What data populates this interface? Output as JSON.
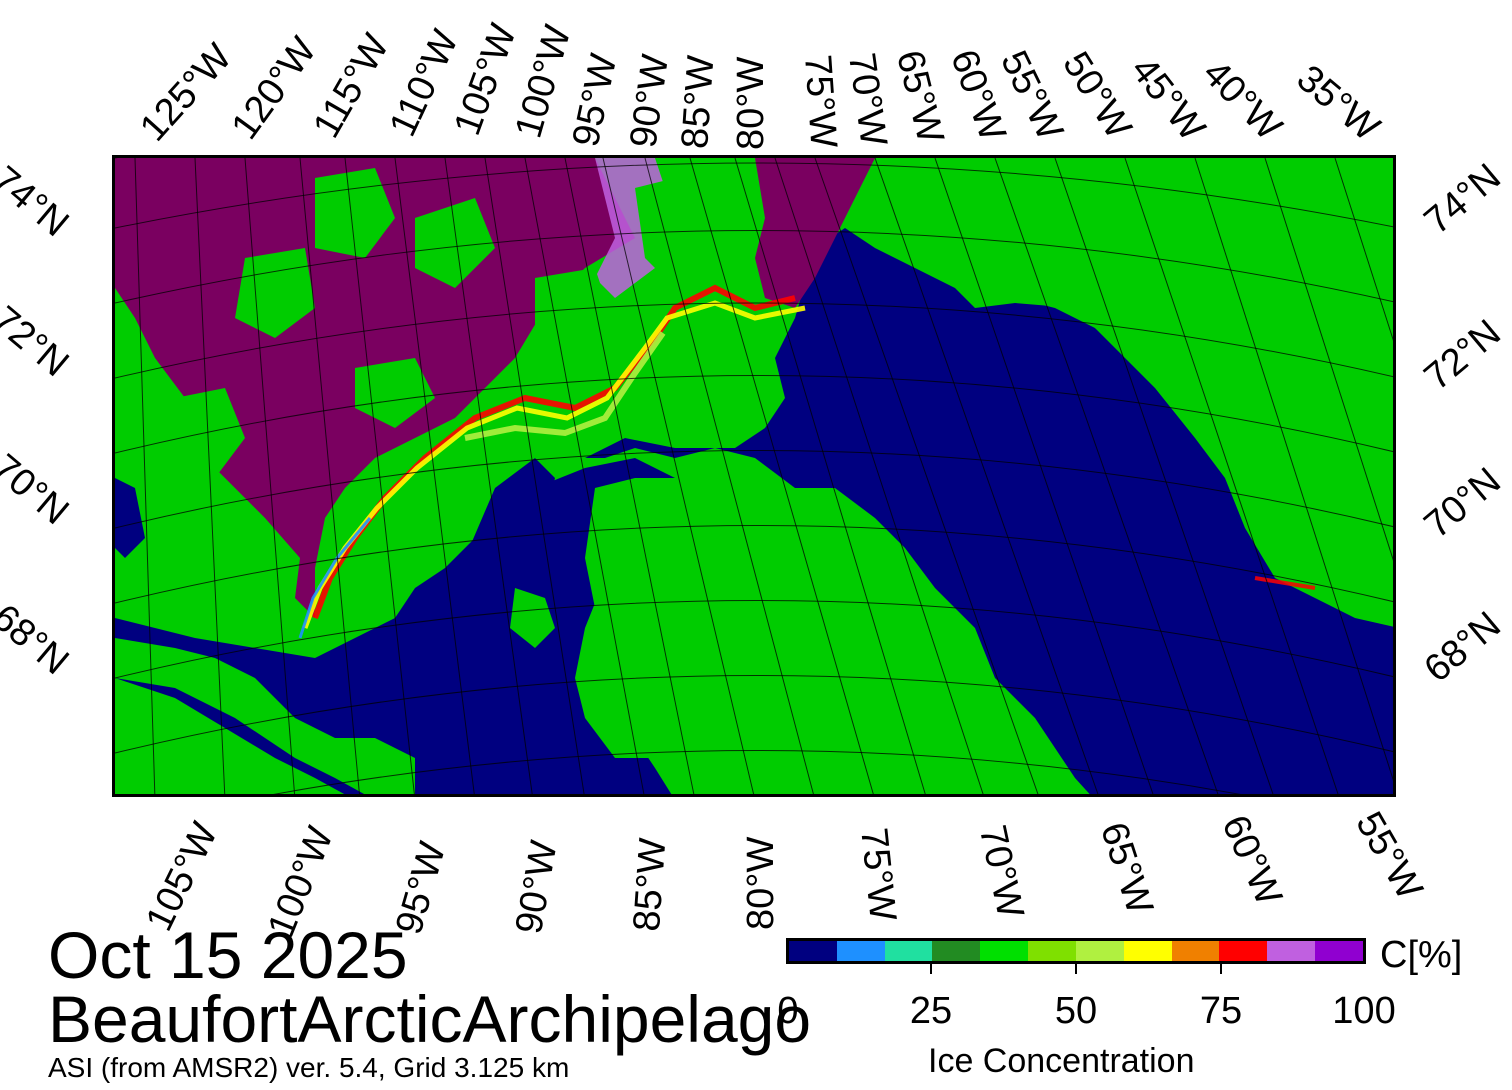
{
  "map": {
    "lon_labels_top": [
      "125°W",
      "120°W",
      "115°W",
      "110°W",
      "105°W",
      "100°W",
      "95°W",
      "90°W",
      "85°W",
      "80°W",
      "75°W",
      "70°W",
      "65°W",
      "60°W",
      "55°W",
      "50°W",
      "45°W",
      "40°W",
      "35°W"
    ],
    "lon_labels_bottom": [
      "105°W",
      "100°W",
      "95°W",
      "90°W",
      "85°W",
      "80°W",
      "75°W",
      "70°W",
      "65°W",
      "60°W",
      "55°W"
    ],
    "lat_labels_left": [
      "74°N",
      "72°N",
      "70°N",
      "68°N"
    ],
    "lat_labels_right": [
      "74°N",
      "72°N",
      "70°N",
      "68°N"
    ],
    "colors": {
      "land": "#00CC00",
      "open_water": "#000080",
      "coast": "#333333",
      "grid": "#000000"
    }
  },
  "title": {
    "date": "Oct 15 2025",
    "region": "BeaufortArcticArchipelago",
    "source": "ASI (from AMSR2) ver. 5.4,  Grid 3.125 km"
  },
  "colorbar": {
    "unit": "C[%]",
    "label": "Ice Concentration",
    "ticks": [
      "0",
      "25",
      "50",
      "75",
      "100"
    ],
    "colors": [
      "#000080",
      "#1E90FF",
      "#20E0A0",
      "#228B22",
      "#00E000",
      "#7FE000",
      "#B0F040",
      "#FFFF00",
      "#F08000",
      "#FF0000",
      "#C060E0",
      "#9000D0"
    ]
  }
}
